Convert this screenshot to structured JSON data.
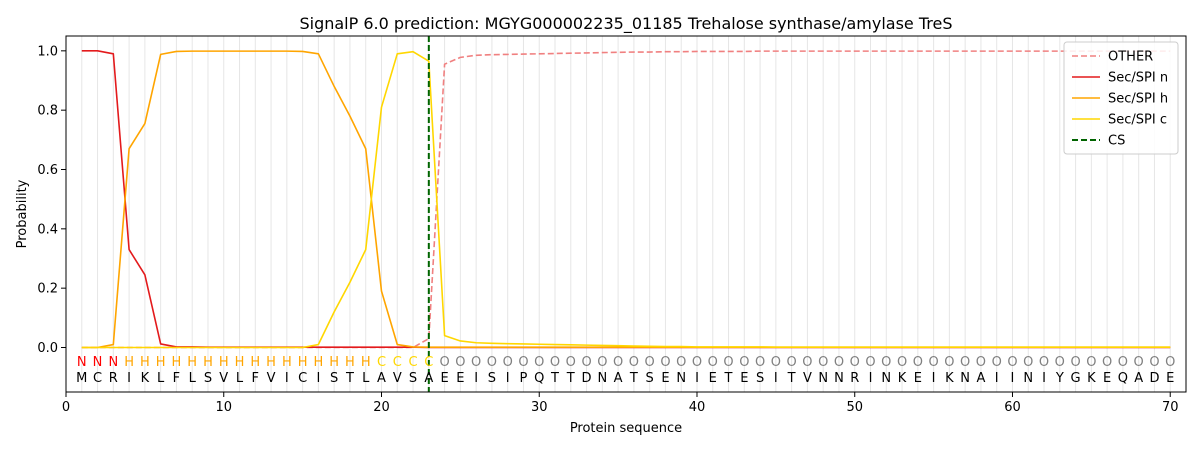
{
  "chart_data": {
    "type": "line",
    "title": "SignalP 6.0 prediction: MGYG000002235_01185 Trehalose synthase/amylase TreS",
    "xlabel": "Protein sequence",
    "ylabel": "Probability",
    "xlim": [
      0,
      71
    ],
    "ylim": [
      -0.15,
      1.05
    ],
    "xticks": [
      0,
      10,
      20,
      30,
      40,
      50,
      60,
      70
    ],
    "yticks": [
      0.0,
      0.2,
      0.4,
      0.6,
      0.8,
      1.0
    ],
    "x_tick_labels": [
      "0",
      "10",
      "20",
      "30",
      "40",
      "50",
      "60",
      "70"
    ],
    "y_tick_labels": [
      "0.0",
      "0.2",
      "0.4",
      "0.6",
      "0.8",
      "1.0"
    ],
    "grid": "vertical lines at each residue",
    "legend_position": "top-right",
    "sequence": [
      "M",
      "C",
      "R",
      "I",
      "K",
      "L",
      "F",
      "L",
      "S",
      "V",
      "L",
      "F",
      "V",
      "I",
      "C",
      "I",
      "S",
      "T",
      "L",
      "A",
      "V",
      "S",
      "A",
      "E",
      "E",
      "I",
      "S",
      "I",
      "P",
      "Q",
      "T",
      "T",
      "D",
      "N",
      "A",
      "T",
      "S",
      "E",
      "N",
      "I",
      "E",
      "T",
      "E",
      "S",
      "I",
      "T",
      "V",
      "N",
      "N",
      "R",
      "I",
      "N",
      "K",
      "E",
      "I",
      "K",
      "N",
      "A",
      "I",
      "I",
      "N",
      "I",
      "Y",
      "G",
      "K",
      "E",
      "Q",
      "A",
      "D",
      "E"
    ],
    "labels": [
      "N",
      "N",
      "N",
      "H",
      "H",
      "H",
      "H",
      "H",
      "H",
      "H",
      "H",
      "H",
      "H",
      "H",
      "H",
      "H",
      "H",
      "H",
      "H",
      "C",
      "C",
      "C",
      "C",
      "O",
      "O",
      "O",
      "O",
      "O",
      "O",
      "O",
      "O",
      "O",
      "O",
      "O",
      "O",
      "O",
      "O",
      "O",
      "O",
      "O",
      "O",
      "O",
      "O",
      "O",
      "O",
      "O",
      "O",
      "O",
      "O",
      "O",
      "O",
      "O",
      "O",
      "O",
      "O",
      "O",
      "O",
      "O",
      "O",
      "O",
      "O",
      "O",
      "O",
      "O",
      "O",
      "O",
      "O",
      "O",
      "O",
      "O"
    ],
    "label_colors": {
      "N": "#ff0000",
      "H": "#ffa500",
      "C": "#ffd700",
      "O": "#808080"
    },
    "cs_position": 23,
    "series": [
      {
        "name": "OTHER",
        "color": "#f08080",
        "dash": true,
        "values": [
          0,
          0,
          0,
          0,
          0,
          0,
          0,
          0,
          0,
          0,
          0,
          0,
          0,
          0,
          0,
          0,
          0,
          0,
          0,
          0,
          0,
          0,
          0.03,
          0.955,
          0.978,
          0.985,
          0.987,
          0.988,
          0.989,
          0.99,
          0.991,
          0.992,
          0.993,
          0.994,
          0.995,
          0.996,
          0.996,
          0.997,
          0.997,
          0.998,
          0.998,
          0.998,
          0.998,
          0.999,
          0.999,
          0.999,
          0.999,
          0.999,
          0.999,
          0.999,
          0.999,
          0.999,
          0.999,
          0.999,
          0.999,
          0.999,
          0.999,
          0.999,
          0.999,
          0.999,
          0.999,
          0.999,
          0.999,
          0.999,
          0.999,
          0.999,
          0.999,
          0.999,
          0.999,
          0.999
        ]
      },
      {
        "name": "Sec/SPI n",
        "color": "#e31a1c",
        "dash": false,
        "values": [
          1.0,
          1.0,
          0.99,
          0.33,
          0.245,
          0.012,
          0.002,
          0.002,
          0.001,
          0.001,
          0.001,
          0.001,
          0.001,
          0.001,
          0.001,
          0.001,
          0.001,
          0.001,
          0.001,
          0.001,
          0.001,
          0.001,
          0,
          0,
          0,
          0,
          0,
          0,
          0,
          0,
          0,
          0,
          0,
          0,
          0,
          0,
          0,
          0,
          0,
          0,
          0,
          0,
          0,
          0,
          0,
          0,
          0,
          0,
          0,
          0,
          0,
          0,
          0,
          0,
          0,
          0,
          0,
          0,
          0,
          0,
          0,
          0,
          0,
          0,
          0,
          0,
          0,
          0,
          0,
          0
        ]
      },
      {
        "name": "Sec/SPI h",
        "color": "#ffa500",
        "dash": false,
        "values": [
          0,
          0,
          0.01,
          0.67,
          0.755,
          0.988,
          0.998,
          0.999,
          0.999,
          0.999,
          0.999,
          0.999,
          0.999,
          0.999,
          0.998,
          0.99,
          0.88,
          0.78,
          0.67,
          0.19,
          0.01,
          0.002,
          0.001,
          0.001,
          0.001,
          0.001,
          0.001,
          0.001,
          0.001,
          0.001,
          0.001,
          0.001,
          0.001,
          0.001,
          0.001,
          0.001,
          0.001,
          0.001,
          0.001,
          0.001,
          0.001,
          0.001,
          0.001,
          0.001,
          0.001,
          0.001,
          0.001,
          0.001,
          0.001,
          0.001,
          0.001,
          0.001,
          0.001,
          0.001,
          0.001,
          0.001,
          0.001,
          0.001,
          0.001,
          0.001,
          0.001,
          0.001,
          0.001,
          0.001,
          0.001,
          0.001,
          0.001,
          0.001,
          0.001,
          0.001
        ]
      },
      {
        "name": "Sec/SPI c",
        "color": "#ffd700",
        "dash": false,
        "values": [
          0,
          0,
          0,
          0,
          0,
          0,
          0,
          0,
          0,
          0,
          0,
          0,
          0,
          0,
          0,
          0.01,
          0.12,
          0.22,
          0.33,
          0.81,
          0.99,
          0.997,
          0.965,
          0.04,
          0.022,
          0.016,
          0.014,
          0.013,
          0.012,
          0.011,
          0.01,
          0.009,
          0.008,
          0.007,
          0.006,
          0.005,
          0.004,
          0.003,
          0.003,
          0.002,
          0.002,
          0.002,
          0.002,
          0.002,
          0.001,
          0.001,
          0.001,
          0.001,
          0.001,
          0.001,
          0.001,
          0.001,
          0.001,
          0.001,
          0.001,
          0.001,
          0.001,
          0.001,
          0.001,
          0.001,
          0.001,
          0.001,
          0.001,
          0.001,
          0.001,
          0.001,
          0.001,
          0.001,
          0.001,
          0.001
        ]
      },
      {
        "name": "CS",
        "color": "#006400",
        "dash": true,
        "vertical_at": 23
      }
    ]
  }
}
